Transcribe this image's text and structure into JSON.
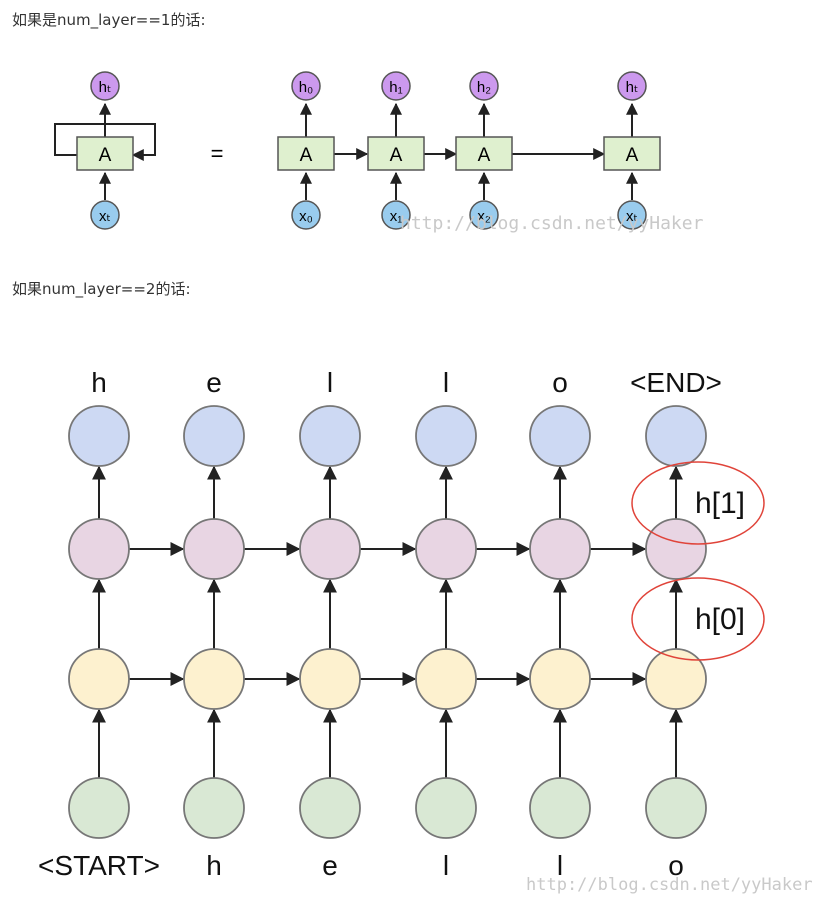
{
  "captions": {
    "one_layer": "如果是num_layer==1的话:",
    "two_layers": "如果num_layer==2的话:"
  },
  "diagram1": {
    "cell_label": "A",
    "equals": "=",
    "folded": {
      "input": "xₜ",
      "output": "hₜ"
    },
    "unrolled": [
      {
        "input": "x₀",
        "output": "h₀"
      },
      {
        "input": "x₁",
        "output": "h₁"
      },
      {
        "input": "x₂",
        "output": "h₂"
      },
      {
        "input": "xₜ",
        "output": "hₜ"
      }
    ],
    "watermark": "http://blog.csdn.net/yyHaker",
    "colors": {
      "output_node": "#cc99ee",
      "input_node": "#99ccee",
      "cell": "#dff0cf"
    }
  },
  "diagram2": {
    "top_labels": [
      "h",
      "e",
      "l",
      "l",
      "o",
      "<END>"
    ],
    "bottom_labels": [
      "<START>",
      "h",
      "e",
      "l",
      "l",
      "o"
    ],
    "annotations": [
      "h[1]",
      "h[0]"
    ],
    "watermark": "http://blog.csdn.net/yyHaker",
    "colors": {
      "output_layer": "#cdd9f3",
      "hidden_layer_1": "#e8d5e3",
      "hidden_layer_0": "#fdf1cf",
      "input_layer": "#d9e8d4",
      "highlight_ellipse": "#e0443a"
    }
  }
}
